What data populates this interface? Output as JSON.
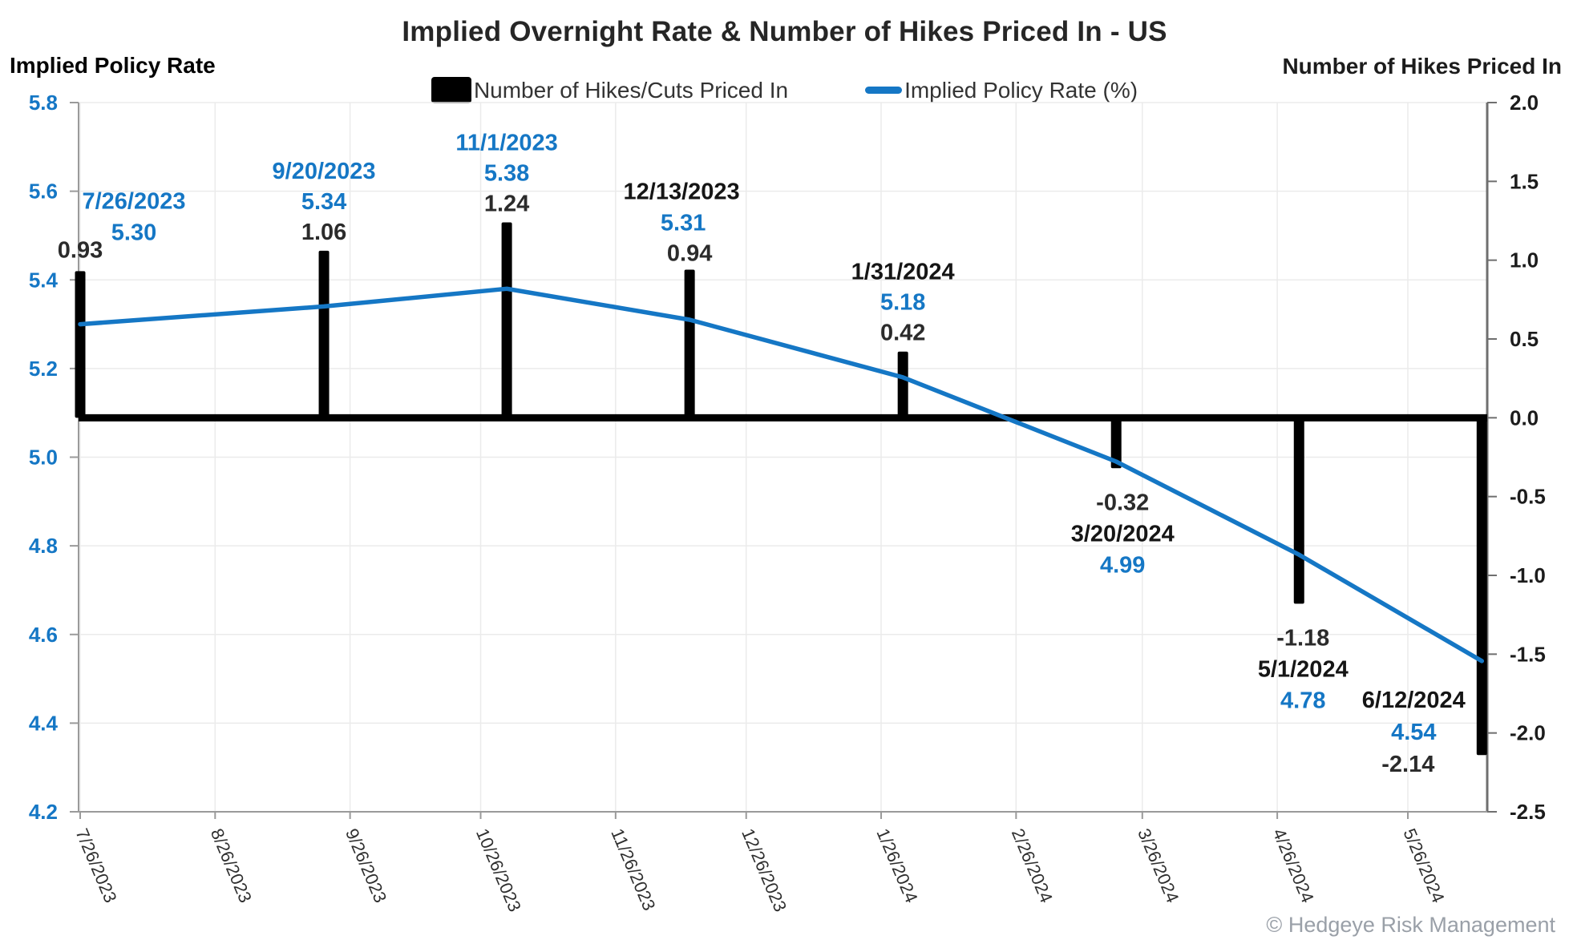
{
  "title": "Implied Overnight Rate & Number of Hikes Priced In - US",
  "header": {
    "left_label": "Implied Policy Rate",
    "right_label": "Number of Hikes Priced In"
  },
  "legend": {
    "items": [
      {
        "label": "Number of Hikes/Cuts Priced In",
        "swatch": "bar-swatch",
        "color": "#000000"
      },
      {
        "label": "Implied Policy Rate (%)",
        "swatch": "line-swatch",
        "color": "#1577c5"
      }
    ]
  },
  "watermark": "© Hedgeye Risk Management",
  "colors": {
    "blue": "#1577c5",
    "date_black": "#151515",
    "value_black": "#2b2b2b",
    "grid": "#ebebeb",
    "spine": "#9a9a9a",
    "right_spine": "#6f6f6f",
    "tick_label_right": "#1c1c1c",
    "x_tick_label": "#2e2e2e",
    "bar": "#000000"
  },
  "chart_data": {
    "type": "bar+line",
    "title": "Implied Overnight Rate & Number of Hikes Priced In - US",
    "grid": true,
    "legend_position": "top-center",
    "x_axis": {
      "tick_labels": [
        "7/26/2023",
        "8/26/2023",
        "9/26/2023",
        "10/26/2023",
        "11/26/2023",
        "12/26/2023",
        "1/26/2024",
        "2/26/2024",
        "3/26/2024",
        "4/26/2024",
        "5/26/2024"
      ],
      "tick_day_offsets": [
        0,
        31,
        62,
        92,
        123,
        153,
        184,
        215,
        244,
        275,
        305
      ],
      "domain_days": [
        0,
        322
      ]
    },
    "left_axis": {
      "label": "Implied Policy Rate",
      "ticks": [
        5.8,
        5.6,
        5.4,
        5.2,
        5.0,
        4.8,
        4.6,
        4.4,
        4.2
      ],
      "range": [
        4.2,
        5.8
      ]
    },
    "right_axis": {
      "label": "Number of Hikes Priced In",
      "ticks": [
        2.0,
        1.5,
        1.0,
        0.5,
        0.0,
        -0.5,
        -1.0,
        -1.5,
        -2.0,
        -2.5
      ],
      "range": [
        -2.5,
        2.0
      ]
    },
    "series": [
      {
        "name": "Number of Hikes/Cuts Priced In",
        "type": "bar",
        "axis": "right",
        "color": "#000000"
      },
      {
        "name": "Implied Policy Rate (%)",
        "type": "line",
        "axis": "left",
        "color": "#1577c5"
      }
    ],
    "events": [
      {
        "date": "7/26/2023",
        "day": 0,
        "implied_policy_rate": 5.3,
        "hikes_priced_in": 0.93,
        "date_color": "blue",
        "placement": "above"
      },
      {
        "date": "9/20/2023",
        "day": 56,
        "implied_policy_rate": 5.34,
        "hikes_priced_in": 1.06,
        "date_color": "blue",
        "placement": "above"
      },
      {
        "date": "11/1/2023",
        "day": 98,
        "implied_policy_rate": 5.38,
        "hikes_priced_in": 1.24,
        "date_color": "blue",
        "placement": "above"
      },
      {
        "date": "12/13/2023",
        "day": 140,
        "implied_policy_rate": 5.31,
        "hikes_priced_in": 0.94,
        "date_color": "black",
        "placement": "above"
      },
      {
        "date": "1/31/2024",
        "day": 189,
        "implied_policy_rate": 5.18,
        "hikes_priced_in": 0.42,
        "date_color": "black",
        "placement": "above"
      },
      {
        "date": "3/20/2024",
        "day": 238,
        "implied_policy_rate": 4.99,
        "hikes_priced_in": -0.32,
        "date_color": "black",
        "placement": "below"
      },
      {
        "date": "5/1/2024",
        "day": 280,
        "implied_policy_rate": 4.78,
        "hikes_priced_in": -1.18,
        "date_color": "black",
        "placement": "below"
      },
      {
        "date": "6/12/2024",
        "day": 322,
        "implied_policy_rate": 4.54,
        "hikes_priced_in": -2.14,
        "date_color": "black",
        "placement": "left-of-bar"
      }
    ]
  }
}
